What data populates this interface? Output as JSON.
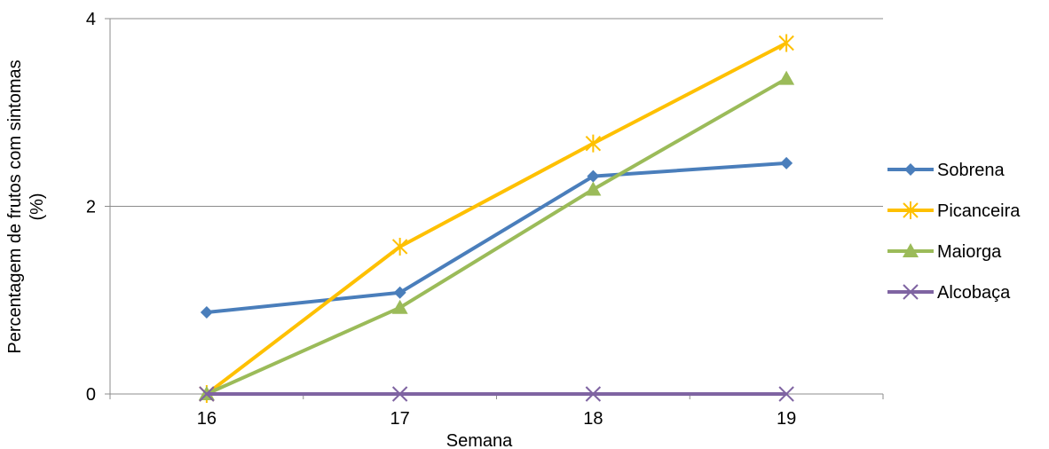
{
  "chart_data": {
    "type": "line",
    "x": [
      16,
      17,
      18,
      19
    ],
    "xlabel": "Semana",
    "ylabel_lines": [
      "Percentagem de frutos com sintomas",
      "(%)"
    ],
    "ylim": [
      0,
      4
    ],
    "yticks": [
      0,
      2,
      4
    ],
    "grid": "horizontal",
    "legend_position": "right",
    "series": [
      {
        "name": "Sobrena",
        "values": [
          0.87,
          1.08,
          2.32,
          2.46
        ],
        "color": "#4a7ebb",
        "marker": "diamond"
      },
      {
        "name": "Picanceira",
        "values": [
          0.0,
          1.57,
          2.67,
          3.74
        ],
        "color": "#fec000",
        "marker": "asterisk"
      },
      {
        "name": "Maiorga",
        "values": [
          0.0,
          0.92,
          2.18,
          3.36
        ],
        "color": "#9bbb59",
        "marker": "triangle"
      },
      {
        "name": "Alcobaça",
        "values": [
          0.0,
          0.0,
          0.0,
          0.0
        ],
        "color": "#7f64a2",
        "marker": "x"
      }
    ]
  }
}
